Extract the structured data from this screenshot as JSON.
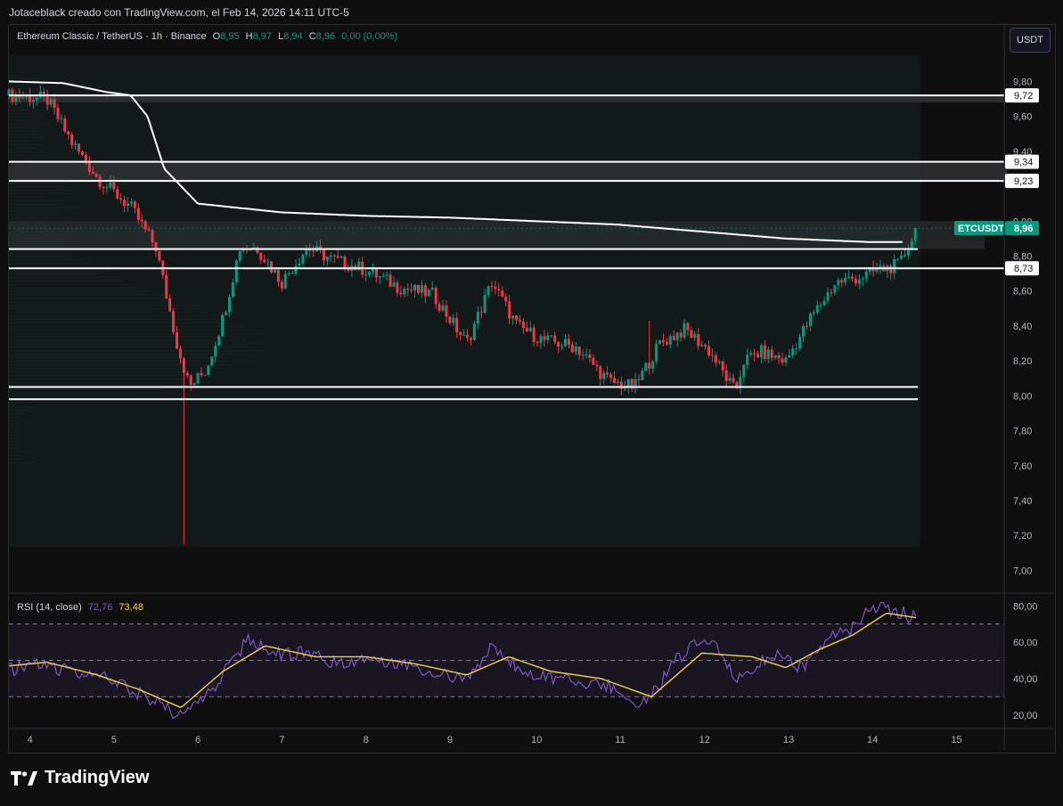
{
  "header": {
    "attribution": "Jotaceblack creado con TradingView.com, el Feb 14, 2026 14:11 UTC-5"
  },
  "legend": {
    "symbol": "Ethereum Classic / TetherUS · 1h · Binance",
    "o_label": "O",
    "o_value": "8,95",
    "h_label": "H",
    "h_value": "8,97",
    "l_label": "L",
    "l_value": "8,94",
    "c_label": "C",
    "c_value": "8,96",
    "change": "0,00 (0,00%)"
  },
  "currency_button": "USDT",
  "rsi_legend": {
    "name": "RSI (14, close)",
    "rsi": "72,76",
    "ma": "73,48"
  },
  "footer": {
    "brand": "TradingView"
  },
  "colors": {
    "up": "#089981",
    "down": "#f23645",
    "rsi": "#7e57c2",
    "rsi_ma": "#f5d142",
    "bg": "#0f0f0f"
  },
  "chart_data": [
    {
      "type": "candlestick",
      "title": "Ethereum Classic / TetherUS · 1h · Binance",
      "y_ticks": [
        "9,80",
        "9,60",
        "9,40",
        "9,00",
        "8,80",
        "8,60",
        "8,40",
        "8,20",
        "8,00",
        "7,80",
        "7,60",
        "7,40",
        "7,20",
        "7,00"
      ],
      "x_ticks": [
        "4",
        "5",
        "6",
        "7",
        "8",
        "9",
        "10",
        "11",
        "12",
        "13",
        "14",
        "15"
      ],
      "ylim": [
        6.9,
        9.95
      ],
      "xlim": [
        3.75,
        15.6
      ],
      "horizontal_levels": [
        {
          "value": 9.72,
          "label": "9,72"
        },
        {
          "value": 9.34,
          "label": "9,34"
        },
        {
          "value": 9.23,
          "label": "9,23"
        },
        {
          "value": 8.73,
          "label": "8,73"
        }
      ],
      "support_lines": [
        8.05,
        7.98,
        8.84
      ],
      "last_price": {
        "symbol": "ETCUSDT",
        "value": 8.96,
        "label": "8,96"
      },
      "ohlc_path_keypoints": {
        "x": [
          3.75,
          4.2,
          4.5,
          4.8,
          5.2,
          5.5,
          5.75,
          5.9,
          6.1,
          6.3,
          6.5,
          6.7,
          7.0,
          7.3,
          7.6,
          8.0,
          8.4,
          8.8,
          9.2,
          9.5,
          9.8,
          10.1,
          10.5,
          10.9,
          11.2,
          11.5,
          11.8,
          12.1,
          12.4,
          12.5,
          12.7,
          13.0,
          13.3,
          13.6,
          13.9,
          14.1,
          14.35,
          14.5,
          14.55
        ],
        "close": [
          9.72,
          9.7,
          9.45,
          9.25,
          9.08,
          8.85,
          8.3,
          8.05,
          8.15,
          8.45,
          8.85,
          8.85,
          8.65,
          8.85,
          8.78,
          8.72,
          8.62,
          8.58,
          8.3,
          8.65,
          8.4,
          8.32,
          8.28,
          8.08,
          8.05,
          8.3,
          8.38,
          8.25,
          8.02,
          8.2,
          8.25,
          8.2,
          8.45,
          8.65,
          8.68,
          8.72,
          8.75,
          8.9,
          8.96
        ]
      },
      "vwap_keypoints": {
        "x": [
          3.75,
          4.4,
          4.9,
          5.2,
          5.4,
          5.6,
          6.0,
          7.0,
          8.0,
          9.0,
          10.0,
          11.0,
          11.5,
          12.0,
          12.5,
          13.0,
          13.5,
          14.0,
          14.4
        ],
        "y": [
          9.8,
          9.79,
          9.74,
          9.72,
          9.6,
          9.3,
          9.1,
          9.05,
          9.03,
          9.02,
          9.0,
          8.98,
          8.96,
          8.94,
          8.92,
          8.9,
          8.89,
          8.88,
          8.88
        ]
      }
    },
    {
      "type": "line",
      "title": "RSI (14, close)",
      "y_ticks": [
        "80,00",
        "60,00",
        "40,00",
        "20,00"
      ],
      "ylim": [
        14,
        86
      ],
      "bands": [
        70,
        50,
        30
      ],
      "series": [
        {
          "name": "RSI",
          "x": [
            3.75,
            4.1,
            4.5,
            4.9,
            5.2,
            5.5,
            5.75,
            6.0,
            6.3,
            6.6,
            7.0,
            7.3,
            7.6,
            8.0,
            8.4,
            8.8,
            9.2,
            9.5,
            9.8,
            10.1,
            10.5,
            10.9,
            11.1,
            11.4,
            11.7,
            12.0,
            12.2,
            12.4,
            12.6,
            12.9,
            13.2,
            13.5,
            13.8,
            14.0,
            14.3,
            14.55
          ],
          "values": [
            45,
            48,
            44,
            40,
            34,
            28,
            20,
            25,
            42,
            62,
            52,
            56,
            48,
            52,
            49,
            44,
            38,
            58,
            46,
            42,
            38,
            36,
            26,
            30,
            50,
            62,
            55,
            40,
            45,
            55,
            46,
            62,
            68,
            80,
            78,
            72.76
          ]
        },
        {
          "name": "RSI MA",
          "x": [
            3.75,
            4.2,
            4.8,
            5.3,
            5.8,
            6.3,
            6.8,
            7.4,
            8.0,
            8.6,
            9.2,
            9.7,
            10.2,
            10.8,
            11.4,
            12.0,
            12.6,
            13.0,
            13.4,
            13.8,
            14.2,
            14.55
          ],
          "values": [
            47,
            49,
            42,
            34,
            24,
            44,
            58,
            52,
            52,
            48,
            42,
            52,
            44,
            40,
            30,
            54,
            52,
            46,
            56,
            64,
            76,
            73.48
          ]
        }
      ]
    }
  ]
}
